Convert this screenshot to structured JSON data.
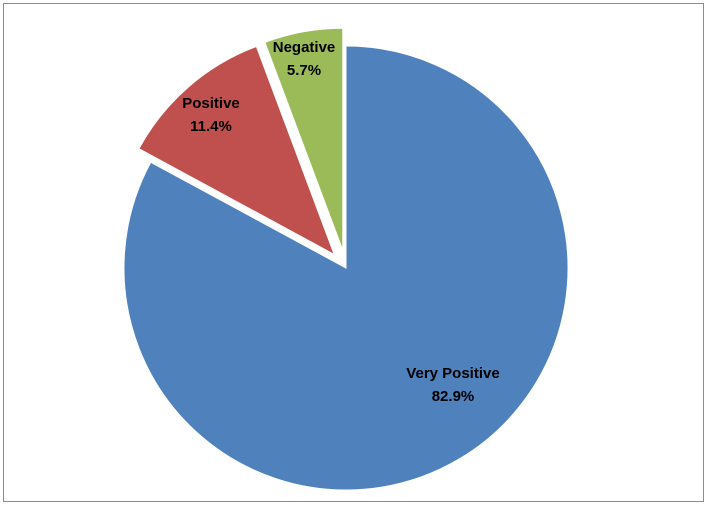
{
  "chart_data": {
    "type": "pie",
    "title": "",
    "categories": [
      "Very Positive",
      "Positive",
      "Negative"
    ],
    "values": [
      82.9,
      11.4,
      5.7
    ],
    "value_labels": [
      "82.9%",
      "11.4%",
      "5.7%"
    ],
    "colors": [
      "#4f81bd",
      "#c0504d",
      "#9bbb59"
    ],
    "exploded": [
      false,
      true,
      true
    ],
    "legend": "none",
    "start_angle": "12 o'clock, clockwise"
  }
}
